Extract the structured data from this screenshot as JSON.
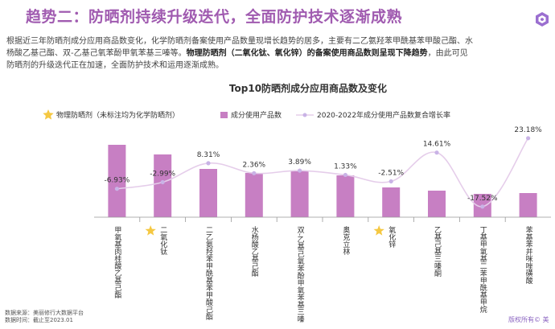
{
  "header": {
    "title": "趋势二：防晒剂持续升级迭代，全面防护技术逐渐成熟",
    "logo_icon": "hexagon-logo-icon",
    "accent_color": "#a05bb0"
  },
  "description": {
    "line1": "根据近三年防晒剂成分应用商品数变化，化学防晒剂备案使用产品数量现增长趋势的居多，主要有二乙氨羟苯甲酰基苯甲酸己酯、水",
    "line2_start": "杨酸乙基己酯、双-乙基己氧苯酚甲氧苯基三嗪等。",
    "line2_bold": "物理防晒剂（二氧化钛、氧化锌）的备案使用商品数则呈现下降趋势",
    "line2_end": "，由此可见",
    "line3": "防晒剂的升级迭代正在加速，全面防护技术和运用逐渐成熟。"
  },
  "chart_data": {
    "type": "bar",
    "title": "Top10防晒剂成分应用商品数及变化",
    "legend": {
      "physical_note": "物理防晒剂（未标注均为化学防晒剂）",
      "bar_series": "成分使用产品数",
      "line_series": "2020-2022年成分使用产品数复合增长率",
      "placement": "top"
    },
    "categories": [
      "甲氧基肉桂酸乙基己酯",
      "二氧化钛",
      "二乙氨羟苯甲酰基苯甲酸己酯",
      "水杨酸乙基己酯",
      "双-乙基己氧苯酚甲氧苯基三嗪",
      "奥克立林",
      "氧化锌",
      "乙基己基三嗪酮",
      "丁基甲氧基二苯甲酰基甲烷",
      "苯基苯并咪唑磺酸"
    ],
    "physical": [
      false,
      true,
      false,
      false,
      false,
      false,
      true,
      false,
      false,
      false
    ],
    "bar_values": [
      90,
      78,
      60,
      55,
      57,
      52,
      37,
      33,
      29,
      30
    ],
    "growth_rate": [
      -6.93,
      -2.99,
      8.31,
      2.36,
      3.89,
      1.33,
      -2.51,
      14.61,
      -17.52,
      23.18
    ],
    "growth_labels": [
      "-6.93%",
      "-2.99%",
      "8.31%",
      "2.36%",
      "3.89%",
      "1.33%",
      "-2.51%",
      "14.61%",
      "-17.52%",
      "23.18%"
    ],
    "bar_color": "#c77fc3",
    "line_color": "#e5cdea",
    "marker_color": "#c9b3e6",
    "star_color": "#f5c842",
    "y_axis_visible": false,
    "grid": false
  },
  "footer": {
    "source": "数据来源：美丽修行大数据平台",
    "time": "数据时间：截止至2023.01",
    "copyright": "版权所有© 美"
  }
}
